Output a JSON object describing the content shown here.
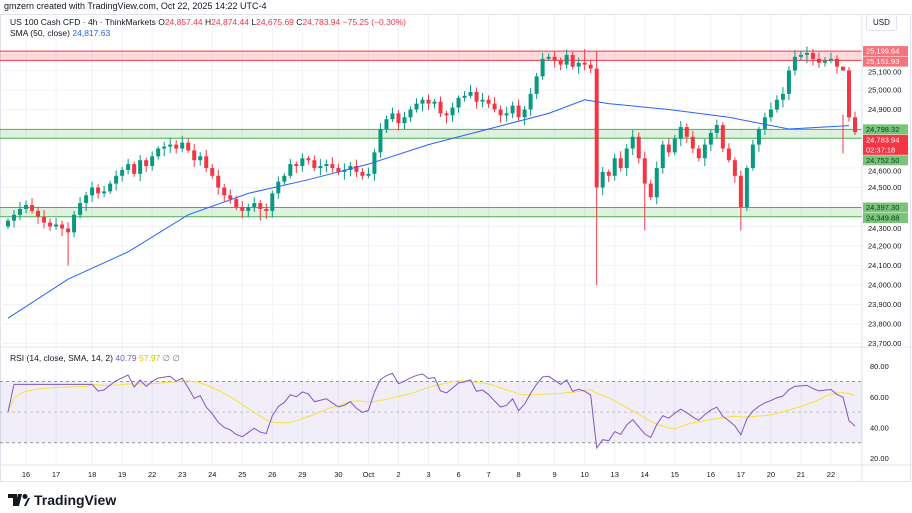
{
  "credit": "gmzern created with TradingView.com, Oct 22, 2025 14:22 UTC-4",
  "legend": {
    "symbol": "US 100 Cash CFD · 4h · ThinkMarkets",
    "o_label": "O",
    "o": "24,857.44",
    "h_label": "H",
    "h": "24,874.44",
    "l_label": "L",
    "l": "24,675.69",
    "c_label": "C",
    "c": "24,783.94",
    "chg": "−75.25 (−0.30%)",
    "sma_label": "SMA (50, close)",
    "sma_value": "24,817.63",
    "rsi_label": "RSI (14, close, SMA, 14, 2)",
    "rsi_value": "40.79",
    "rsi_sma_value": "57.97",
    "rsi_extra1": "∅",
    "rsi_extra2": "∅"
  },
  "currency": "USD",
  "logo": "TradingView",
  "colors": {
    "up": "#089981",
    "down": "#f23645",
    "sma": "#2962ff",
    "rsi": "#7e57c2",
    "rsi_sma": "#f7e13b",
    "resistance": "#f23645",
    "support": "#4caf50"
  },
  "chart_data": {
    "type": "candlestick",
    "title": "US 100 Cash CFD · 4h",
    "ylim": [
      23700,
      25250
    ],
    "price_ticks": [
      "25,100.00",
      "25,000.00",
      "24,900.00",
      "24,600.00",
      "24,500.00",
      "24,300.00",
      "24,200.00",
      "24,100.00",
      "24,000.00",
      "23,900.00",
      "23,800.00",
      "23,700.00"
    ],
    "price_tick_values": [
      25100,
      25000,
      24900,
      24600,
      24500,
      24300,
      24200,
      24100,
      24000,
      23900,
      23800,
      23700
    ],
    "price_labels": [
      {
        "text": "25,199.64",
        "value": 25199.64,
        "kind": "resistance"
      },
      {
        "text": "25,151.93",
        "value": 25151.93,
        "kind": "resistance"
      },
      {
        "text": "24,798.32",
        "value": 24798.32,
        "kind": "support"
      },
      {
        "text": "24,783.94",
        "value": 24783.94,
        "kind": "last",
        "sub": "02:37:18"
      },
      {
        "text": "24,752.50",
        "value": 24752.5,
        "kind": "support"
      },
      {
        "text": "24,397.30",
        "value": 24397.3,
        "kind": "support"
      },
      {
        "text": "24,349.88",
        "value": 24349.88,
        "kind": "support"
      }
    ],
    "zones": [
      {
        "from": 25151.93,
        "to": 25199.64,
        "kind": "resistance"
      },
      {
        "from": 24752.5,
        "to": 24798.32,
        "kind": "support"
      },
      {
        "from": 24349.88,
        "to": 24397.3,
        "kind": "support"
      }
    ],
    "open_first": 24300,
    "closes": [
      24330,
      24360,
      24390,
      24410,
      24380,
      24350,
      24320,
      24300,
      24310,
      24290,
      24270,
      24360,
      24420,
      24460,
      24500,
      24470,
      24480,
      24520,
      24560,
      24590,
      24620,
      24570,
      24640,
      24610,
      24660,
      24700,
      24710,
      24720,
      24700,
      24730,
      24690,
      24640,
      24660,
      24600,
      24560,
      24500,
      24460,
      24440,
      24400,
      24380,
      24400,
      24420,
      24390,
      24380,
      24470,
      24530,
      24560,
      24620,
      24610,
      24650,
      24640,
      24600,
      24610,
      24620,
      24600,
      24580,
      24590,
      24610,
      24580,
      24560,
      24570,
      24680,
      24800,
      24850,
      24880,
      24830,
      24860,
      24900,
      24930,
      24950,
      24930,
      24940,
      24880,
      24870,
      24910,
      24960,
      24970,
      24990,
      24940,
      24950,
      24930,
      24900,
      24870,
      24880,
      24920,
      24860,
      24900,
      24980,
      25070,
      25160,
      25170,
      25150,
      25130,
      25180,
      25120,
      25140,
      25130,
      25110,
      24500,
      24580,
      24560,
      24650,
      24600,
      24700,
      24760,
      24650,
      24520,
      24450,
      24600,
      24720,
      24680,
      24750,
      24810,
      24760,
      24700,
      24650,
      24720,
      24780,
      24820,
      24700,
      24640,
      24560,
      24400,
      24600,
      24720,
      24800,
      24860,
      24900,
      24950,
      24980,
      25100,
      25170,
      25180,
      25190,
      25160,
      25140,
      25150,
      25160,
      25120,
      25100,
      24860,
      24784
    ],
    "low_overrides": {
      "10": 24100,
      "42": 24330,
      "98": 24000,
      "106": 24280,
      "122": 24280,
      "139": 24675
    },
    "high_overrides": {
      "96": 25210,
      "98": 25200,
      "139": 24874
    },
    "sma50": [
      [
        0,
        23830
      ],
      [
        10,
        24030
      ],
      [
        20,
        24170
      ],
      [
        30,
        24360
      ],
      [
        40,
        24470
      ],
      [
        50,
        24540
      ],
      [
        60,
        24620
      ],
      [
        70,
        24720
      ],
      [
        80,
        24800
      ],
      [
        90,
        24880
      ],
      [
        96,
        24950
      ],
      [
        100,
        24930
      ],
      [
        110,
        24900
      ],
      [
        120,
        24860
      ],
      [
        130,
        24800
      ],
      [
        140,
        24817
      ]
    ],
    "rsi": {
      "ylim": [
        15,
        85
      ],
      "ticks": [
        "80.00",
        "60.00",
        "40.00",
        "20.00"
      ],
      "tick_values": [
        80,
        60,
        40,
        20
      ],
      "upper": 70,
      "lower": 30
    },
    "x_ticks": [
      {
        "label": "16",
        "i": 3
      },
      {
        "label": "17",
        "i": 8
      },
      {
        "label": "18",
        "i": 14
      },
      {
        "label": "19",
        "i": 19
      },
      {
        "label": "22",
        "i": 24
      },
      {
        "label": "23",
        "i": 29
      },
      {
        "label": "24",
        "i": 34
      },
      {
        "label": "25",
        "i": 39
      },
      {
        "label": "26",
        "i": 44
      },
      {
        "label": "29",
        "i": 49
      },
      {
        "label": "30",
        "i": 55
      },
      {
        "label": "Oct",
        "i": 60
      },
      {
        "label": "2",
        "i": 65
      },
      {
        "label": "3",
        "i": 70
      },
      {
        "label": "6",
        "i": 75
      },
      {
        "label": "7",
        "i": 80
      },
      {
        "label": "8",
        "i": 85
      },
      {
        "label": "9",
        "i": 91
      },
      {
        "label": "10",
        "i": 96
      },
      {
        "label": "13",
        "i": 101
      },
      {
        "label": "14",
        "i": 106
      },
      {
        "label": "15",
        "i": 111
      },
      {
        "label": "16",
        "i": 117
      },
      {
        "label": "17",
        "i": 122
      },
      {
        "label": "20",
        "i": 127
      },
      {
        "label": "21",
        "i": 132
      },
      {
        "label": "22",
        "i": 137
      }
    ]
  }
}
